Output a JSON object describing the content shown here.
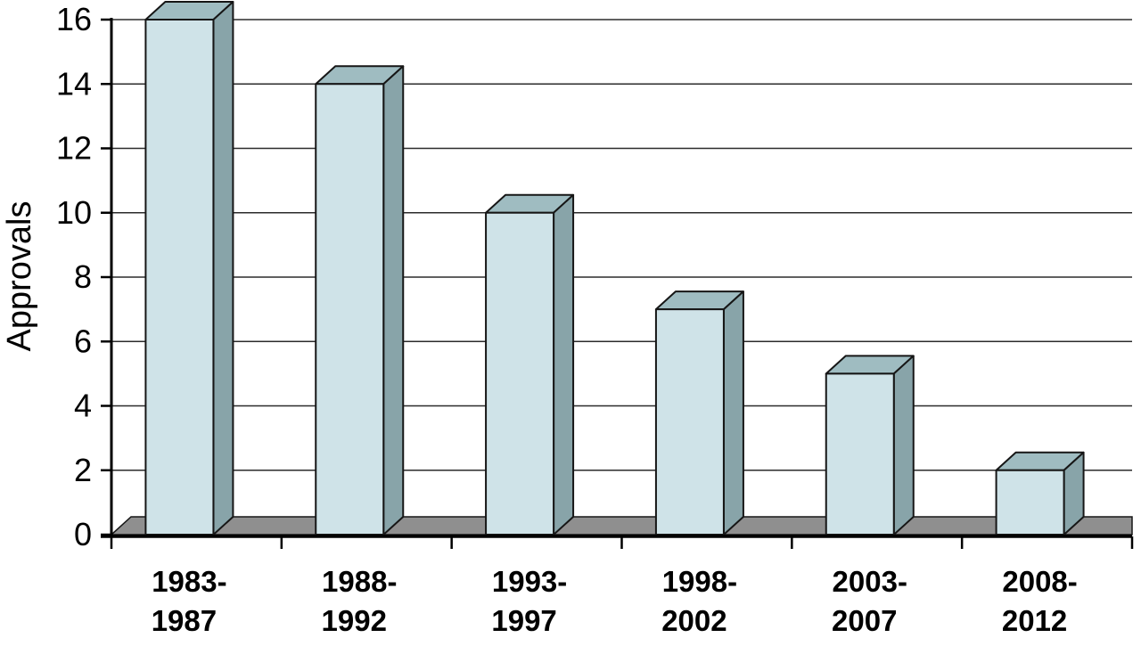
{
  "chart_data": {
    "type": "bar",
    "title": "",
    "xlabel": "",
    "ylabel": "Approvals",
    "style": "3d-bar",
    "grid": "horizontal",
    "legend": "none",
    "ylim": [
      0,
      16
    ],
    "yticks": [
      0,
      2,
      4,
      6,
      8,
      10,
      12,
      14,
      16
    ],
    "categories": [
      {
        "label": "1983-1987",
        "line1": "1983-",
        "line2": "1987"
      },
      {
        "label": "1988-1992",
        "line1": "1988-",
        "line2": "1992"
      },
      {
        "label": "1993-1997",
        "line1": "1993-",
        "line2": "1997"
      },
      {
        "label": "1998-2002",
        "line1": "1998-",
        "line2": "2002"
      },
      {
        "label": "2003-2007",
        "line1": "2003-",
        "line2": "2007"
      },
      {
        "label": "2008-2012",
        "line1": "2008-",
        "line2": "2012"
      }
    ],
    "values": [
      16,
      14,
      10,
      7,
      5,
      2
    ],
    "colors": {
      "bar_front": "#cfe3e8",
      "bar_top": "#9fbcc1",
      "bar_side": "#88a4a9",
      "floor": "#8f8f8f",
      "outline": "#161616",
      "gridline": "#2b2b2b",
      "axis": "#000000",
      "background": "#ffffff",
      "text": "#000000"
    }
  }
}
